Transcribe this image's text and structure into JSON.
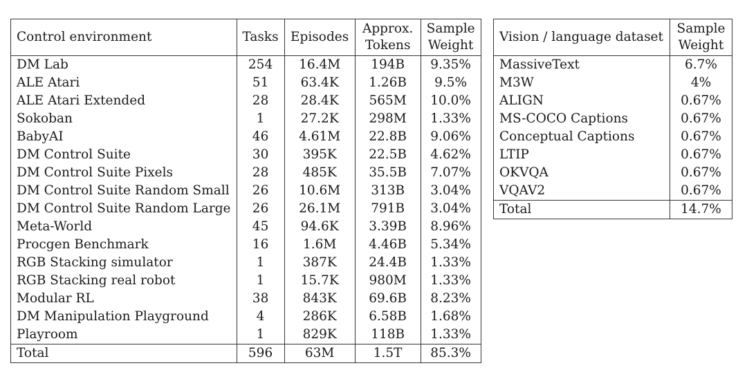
{
  "control_table": {
    "headers": {
      "environment": "Control environment",
      "tasks": "Tasks",
      "episodes": "Episodes",
      "tokens_line1": "Approx.",
      "tokens_line2": "Tokens",
      "weight_line1": "Sample",
      "weight_line2": "Weight"
    },
    "rows": [
      {
        "name": "DM Lab",
        "tasks": "254",
        "episodes": "16.4M",
        "tokens": "194B",
        "weight": "9.35%"
      },
      {
        "name": "ALE Atari",
        "tasks": "51",
        "episodes": "63.4K",
        "tokens": "1.26B",
        "weight": "9.5%"
      },
      {
        "name": "ALE Atari Extended",
        "tasks": "28",
        "episodes": "28.4K",
        "tokens": "565M",
        "weight": "10.0%"
      },
      {
        "name": "Sokoban",
        "tasks": "1",
        "episodes": "27.2K",
        "tokens": "298M",
        "weight": "1.33%"
      },
      {
        "name": "BabyAI",
        "tasks": "46",
        "episodes": "4.61M",
        "tokens": "22.8B",
        "weight": "9.06%"
      },
      {
        "name": "DM Control Suite",
        "tasks": "30",
        "episodes": "395K",
        "tokens": "22.5B",
        "weight": "4.62%"
      },
      {
        "name": "DM Control Suite Pixels",
        "tasks": "28",
        "episodes": "485K",
        "tokens": "35.5B",
        "weight": "7.07%"
      },
      {
        "name": "DM Control Suite Random Small",
        "tasks": "26",
        "episodes": "10.6M",
        "tokens": "313B",
        "weight": "3.04%"
      },
      {
        "name": "DM Control Suite Random Large",
        "tasks": "26",
        "episodes": "26.1M",
        "tokens": "791B",
        "weight": "3.04%"
      },
      {
        "name": "Meta-World",
        "tasks": "45",
        "episodes": "94.6K",
        "tokens": "3.39B",
        "weight": "8.96%"
      },
      {
        "name": "Procgen Benchmark",
        "tasks": "16",
        "episodes": "1.6M",
        "tokens": "4.46B",
        "weight": "5.34%"
      },
      {
        "name": "RGB Stacking simulator",
        "tasks": "1",
        "episodes": "387K",
        "tokens": "24.4B",
        "weight": "1.33%"
      },
      {
        "name": "RGB Stacking real robot",
        "tasks": "1",
        "episodes": "15.7K",
        "tokens": "980M",
        "weight": "1.33%"
      },
      {
        "name": "Modular RL",
        "tasks": "38",
        "episodes": "843K",
        "tokens": "69.6B",
        "weight": "8.23%"
      },
      {
        "name": "DM Manipulation Playground",
        "tasks": "4",
        "episodes": "286K",
        "tokens": "6.58B",
        "weight": "1.68%"
      },
      {
        "name": "Playroom",
        "tasks": "1",
        "episodes": "829K",
        "tokens": "118B",
        "weight": "1.33%"
      }
    ],
    "total": {
      "name": "Total",
      "tasks": "596",
      "episodes": "63M",
      "tokens": "1.5T",
      "weight": "85.3%"
    }
  },
  "vision_table": {
    "headers": {
      "dataset": "Vision / language dataset",
      "weight_line1": "Sample",
      "weight_line2": "Weight"
    },
    "rows": [
      {
        "name": "MassiveText",
        "weight": "6.7%"
      },
      {
        "name": "M3W",
        "weight": "4%"
      },
      {
        "name": "ALIGN",
        "weight": "0.67%"
      },
      {
        "name": "MS-COCO Captions",
        "weight": "0.67%"
      },
      {
        "name": "Conceptual Captions",
        "weight": "0.67%"
      },
      {
        "name": "LTIP",
        "weight": "0.67%"
      },
      {
        "name": "OKVQA",
        "weight": "0.67%"
      },
      {
        "name": "VQAV2",
        "weight": "0.67%"
      }
    ],
    "total": {
      "name": "Total",
      "weight": "14.7%"
    }
  }
}
